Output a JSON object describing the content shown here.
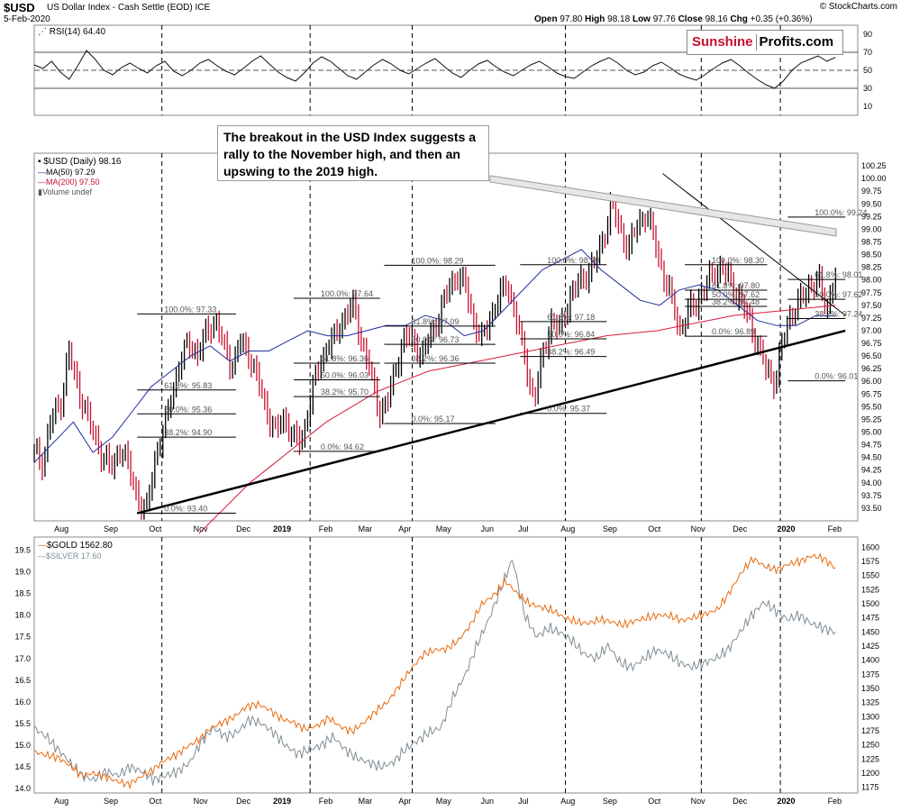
{
  "header": {
    "symbol": "$USD",
    "name": "US Dollar Index - Cash Settle (EOD)",
    "exchange": "ICE",
    "date": "5-Feb-2020",
    "copyright": "© StockCharts.com",
    "ohlc": {
      "open_label": "Open",
      "open": "97.80",
      "high_label": "High",
      "high": "98.18",
      "low_label": "Low",
      "low": "97.76",
      "close_label": "Close",
      "close": "98.16",
      "chg_label": "Chg",
      "chg": "+0.35 (+0.36%)"
    }
  },
  "logo": {
    "part1": "Sunshine",
    "part2": "Profits.com"
  },
  "annotation": "The breakout in the USD Index suggests a rally to the November high, and then an upswing to the 2019 high.",
  "colors": {
    "price_up": "#000000",
    "price_down": "#c8102e",
    "ma50": "#1f2fa0",
    "ma200": "#d81b3c",
    "gold": "#e86b10",
    "silver": "#7f8c95",
    "grid": "#dddddd"
  },
  "chart_data": [
    {
      "type": "line",
      "title": "RSI(14) 64.40",
      "legend": [
        "RSI(14) 64.40"
      ],
      "ylim": [
        0,
        100
      ],
      "y_ticks": [
        "90",
        "70",
        "50",
        "30",
        "10"
      ],
      "reference_lines": [
        70,
        50,
        30
      ],
      "x_ticks": [
        "Aug",
        "Sep",
        "Oct",
        "Nov",
        "Dec",
        "2019",
        "Feb",
        "Mar",
        "Apr",
        "May",
        "Jun",
        "Jul",
        "Aug",
        "Sep",
        "Oct",
        "Nov",
        "Dec",
        "2020",
        "Feb"
      ],
      "series": [
        {
          "name": "RSI(14)",
          "values": [
            56,
            52,
            60,
            48,
            40,
            55,
            72,
            62,
            50,
            45,
            53,
            58,
            52,
            47,
            55,
            60,
            49,
            44,
            50,
            58,
            62,
            55,
            49,
            45,
            52,
            60,
            66,
            57,
            48,
            42,
            38,
            47,
            58,
            65,
            60,
            52,
            44,
            40,
            48,
            56,
            62,
            57,
            50,
            46,
            52,
            58,
            63,
            55,
            47,
            42,
            50,
            57,
            61,
            54,
            48,
            44,
            50,
            56,
            60,
            54,
            47,
            43,
            41,
            48,
            55,
            60,
            64,
            58,
            50,
            45,
            48,
            55,
            59,
            53,
            46,
            42,
            39,
            45,
            52,
            58,
            62,
            55,
            47,
            40,
            34,
            30,
            38,
            50,
            58,
            62,
            66,
            60,
            64.4
          ]
        }
      ]
    },
    {
      "type": "line",
      "title": "$USD (Daily) 98.16",
      "legend": [
        "$USD (Daily) 98.16",
        "MA(50) 97.29",
        "MA(200) 97.50",
        "Volume undef"
      ],
      "ylim": [
        93.25,
        100.5
      ],
      "y_ticks": [
        "100.25",
        "100.00",
        "99.75",
        "99.50",
        "99.25",
        "99.00",
        "98.75",
        "98.50",
        "98.25",
        "98.00",
        "97.75",
        "97.50",
        "97.25",
        "97.00",
        "96.75",
        "96.50",
        "96.25",
        "96.00",
        "95.75",
        "95.50",
        "95.25",
        "95.00",
        "94.75",
        "94.50",
        "94.25",
        "94.00",
        "93.75",
        "93.50"
      ],
      "x_ticks": [
        "Aug",
        "Sep",
        "Oct",
        "Nov",
        "Dec",
        "2019",
        "Feb",
        "Mar",
        "Apr",
        "May",
        "Jun",
        "Jul",
        "Aug",
        "Sep",
        "Oct",
        "Nov",
        "Dec",
        "2020",
        "Feb"
      ],
      "series": [
        {
          "name": "$USD (Daily)",
          "values": [
            94.6,
            94.4,
            95.3,
            95.5,
            96.6,
            95.9,
            95.4,
            94.9,
            94.5,
            94.3,
            94.7,
            94.3,
            93.7,
            93.4,
            94.5,
            95.0,
            95.8,
            96.4,
            96.8,
            96.5,
            97.0,
            97.2,
            96.7,
            96.3,
            96.8,
            96.5,
            96.0,
            95.4,
            95.0,
            95.3,
            94.9,
            94.8,
            95.6,
            96.3,
            96.7,
            96.9,
            97.3,
            97.5,
            96.8,
            96.2,
            95.4,
            95.6,
            96.3,
            96.9,
            96.8,
            96.5,
            96.9,
            97.3,
            97.8,
            98.1,
            97.9,
            97.2,
            96.8,
            97.3,
            97.7,
            97.9,
            97.2,
            96.4,
            95.6,
            96.5,
            97.2,
            97.0,
            97.6,
            97.9,
            98.1,
            98.3,
            98.8,
            99.5,
            99.0,
            98.6,
            99.1,
            99.3,
            98.8,
            98.1,
            97.6,
            97.0,
            97.4,
            97.6,
            97.9,
            98.2,
            98.2,
            97.9,
            97.6,
            97.2,
            96.7,
            96.2,
            96.0,
            96.9,
            97.4,
            97.6,
            97.9,
            98.0,
            97.4,
            98.16
          ]
        },
        {
          "name": "MA(50)",
          "values": [
            94.4,
            94.8,
            95.2,
            94.6,
            94.9,
            95.4,
            95.9,
            96.2,
            96.5,
            96.7,
            96.4,
            96.6,
            96.6,
            96.8,
            97.0,
            96.9,
            96.9,
            97.0,
            97.1,
            97.1,
            97.3,
            97.2,
            96.9,
            97.0,
            97.4,
            97.8,
            98.2,
            98.4,
            98.6,
            98.2,
            97.9,
            97.6,
            97.5,
            97.8,
            97.9,
            97.8,
            97.5,
            97.2,
            97.1,
            97.1,
            97.3,
            97.29
          ]
        },
        {
          "name": "MA(200)",
          "values": [
            93.0,
            93.5,
            94.0,
            94.4,
            94.8,
            95.2,
            95.5,
            95.8,
            96.0,
            96.2,
            96.3,
            96.4,
            96.5,
            96.6,
            96.7,
            96.8,
            96.9,
            96.95,
            97.0,
            97.1,
            97.2,
            97.3,
            97.35,
            97.4,
            97.45,
            97.5
          ]
        },
        {
          "name": "Uptrend support",
          "values": [
            93.4,
            97.0
          ]
        },
        {
          "name": "Downtrend resistance",
          "values": [
            100.1,
            97.3
          ]
        }
      ],
      "fibonacci": [
        {
          "set": 1,
          "labels": [
            "100.0%: 97.33",
            "61.8%: 95.83",
            "50.0%: 95.36",
            "38.2%: 94.90",
            "0.0%: 93.40"
          ]
        },
        {
          "set": 2,
          "labels": [
            "100.0%: 97.64",
            "61.8%: 96.36",
            "50.0%: 96.03",
            "38.2%: 95.70",
            "0.0%: 94.62"
          ]
        },
        {
          "set": 3,
          "labels": [
            "100.0%: 98.29",
            "61.8%: 97.09",
            "50.0%: 96.73",
            "38.2%: 96.36",
            "0.0%: 95.17"
          ]
        },
        {
          "set": 4,
          "labels": [
            "100.0%: 98.30",
            "61.8%: 97.18",
            "50.0%: 96.84",
            "38.2%: 96.49",
            "0.0%: 95.37"
          ]
        },
        {
          "set": 5,
          "labels": [
            "100.0%: 98.30",
            "61.8%: 97.80",
            "50.0%: 97.62",
            "38.2%: 97.48",
            "0.0%: 96.89"
          ]
        },
        {
          "set": 6,
          "labels": [
            "100.0%: 99.24",
            "61.8%: 98.01",
            "50.0%: 97.62",
            "38.2%: 97.24",
            "0.0%: 96.01"
          ]
        }
      ]
    },
    {
      "type": "line",
      "title": "$GOLD 1562.80",
      "legend": [
        "$GOLD 1562.80",
        "$SILVER 17.60"
      ],
      "y_ticks_right": [
        "1600",
        "1575",
        "1550",
        "1525",
        "1500",
        "1475",
        "1450",
        "1425",
        "1400",
        "1375",
        "1350",
        "1325",
        "1300",
        "1275",
        "1250",
        "1225",
        "1200",
        "1175"
      ],
      "y_ticks_left": [
        "19.5",
        "19.0",
        "18.5",
        "18.0",
        "17.5",
        "17.0",
        "16.5",
        "16.0",
        "15.5",
        "15.0",
        "14.5",
        "14.0"
      ],
      "ylim": [
        1165,
        1618
      ],
      "ylim_left": [
        13.9,
        19.8
      ],
      "x_ticks": [
        "Aug",
        "Sep",
        "Oct",
        "Nov",
        "Dec",
        "2019",
        "Feb",
        "Mar",
        "Apr",
        "May",
        "Jun",
        "Jul",
        "Aug",
        "Sep",
        "Oct",
        "Nov",
        "Dec",
        "2020",
        "Feb"
      ],
      "series": [
        {
          "name": "$GOLD",
          "values": [
            1238,
            1232,
            1228,
            1214,
            1196,
            1200,
            1194,
            1186,
            1180,
            1193,
            1205,
            1222,
            1232,
            1247,
            1260,
            1280,
            1290,
            1300,
            1318,
            1322,
            1312,
            1296,
            1290,
            1278,
            1284,
            1298,
            1282,
            1274,
            1290,
            1310,
            1326,
            1356,
            1385,
            1410,
            1418,
            1420,
            1435,
            1462,
            1500,
            1515,
            1540,
            1518,
            1500,
            1494,
            1488,
            1475,
            1468,
            1465,
            1472,
            1468,
            1462,
            1470,
            1475,
            1480,
            1478,
            1470,
            1476,
            1482,
            1490,
            1520,
            1555,
            1580,
            1566,
            1560,
            1570,
            1575,
            1585,
            1580,
            1562.8
          ]
        },
        {
          "name": "$SILVER",
          "values": [
            15.4,
            15.2,
            14.9,
            14.6,
            14.3,
            14.2,
            14.4,
            14.3,
            14.5,
            14.4,
            14.2,
            14.3,
            14.4,
            14.6,
            15.1,
            15.4,
            15.2,
            15.3,
            15.6,
            15.5,
            15.3,
            15.0,
            14.8,
            14.9,
            15.0,
            15.2,
            14.9,
            14.7,
            14.6,
            14.5,
            14.6,
            14.9,
            15.1,
            15.3,
            15.4,
            16.1,
            16.6,
            17.3,
            17.9,
            18.6,
            19.3,
            18.0,
            17.5,
            17.7,
            17.6,
            17.4,
            17.1,
            17.0,
            17.3,
            16.9,
            16.8,
            17.0,
            17.2,
            17.1,
            16.9,
            16.8,
            16.9,
            17.0,
            17.2,
            17.6,
            18.0,
            18.3,
            18.1,
            17.9,
            18.0,
            17.8,
            17.7,
            17.6
          ]
        }
      ]
    }
  ]
}
